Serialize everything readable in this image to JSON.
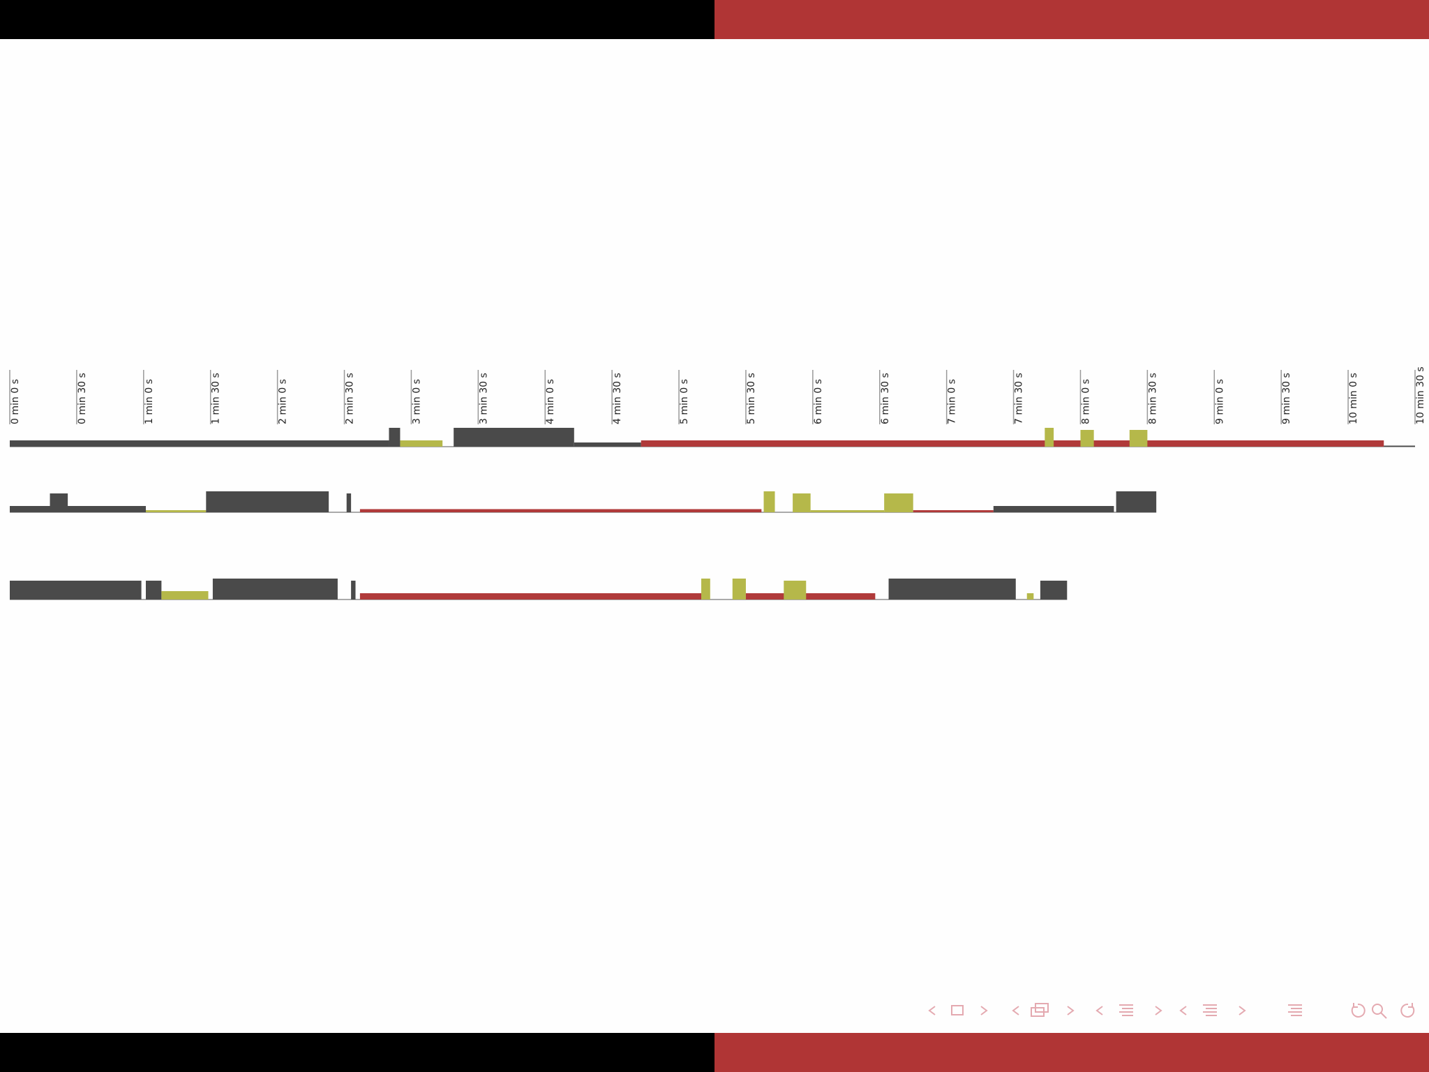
{
  "chart_data": {
    "type": "timeline",
    "xlim": [
      0,
      630
    ],
    "xticks": [
      {
        "value": 0,
        "label": "0 min 0 s"
      },
      {
        "value": 30,
        "label": "0 min 30 s"
      },
      {
        "value": 60,
        "label": "1 min 0 s"
      },
      {
        "value": 90,
        "label": "1 min 30 s"
      },
      {
        "value": 120,
        "label": "2 min 0 s"
      },
      {
        "value": 150,
        "label": "2 min 30 s"
      },
      {
        "value": 180,
        "label": "3 min 0 s"
      },
      {
        "value": 210,
        "label": "3 min 30 s"
      },
      {
        "value": 240,
        "label": "4 min 0 s"
      },
      {
        "value": 270,
        "label": "4 min 30 s"
      },
      {
        "value": 300,
        "label": "5 min 0 s"
      },
      {
        "value": 330,
        "label": "5 min 30 s"
      },
      {
        "value": 360,
        "label": "6 min 0 s"
      },
      {
        "value": 390,
        "label": "6 min 30 s"
      },
      {
        "value": 420,
        "label": "7 min 0 s"
      },
      {
        "value": 450,
        "label": "7 min 30 s"
      },
      {
        "value": 480,
        "label": "8 min 0 s"
      },
      {
        "value": 510,
        "label": "8 min 30 s"
      },
      {
        "value": 540,
        "label": "9 min 0 s"
      },
      {
        "value": 570,
        "label": "9 min 30 s"
      },
      {
        "value": 600,
        "label": "10 min 0 s"
      },
      {
        "value": 630,
        "label": "10 min 30 s"
      }
    ],
    "rows": [
      {
        "segments": [
          {
            "start": 0,
            "end": 170,
            "level": 0.3,
            "color": "#4a4a4a"
          },
          {
            "start": 170,
            "end": 175,
            "level": 0.9,
            "color": "#4a4a4a"
          },
          {
            "start": 175,
            "end": 194,
            "level": 0.3,
            "color": "#b5b84a"
          },
          {
            "start": 199,
            "end": 253,
            "level": 0.9,
            "color": "#4a4a4a"
          },
          {
            "start": 253,
            "end": 283,
            "level": 0.2,
            "color": "#4a4a4a"
          },
          {
            "start": 283,
            "end": 616,
            "level": 0.3,
            "color": "#b03a3a"
          },
          {
            "start": 464,
            "end": 468,
            "level": 0.9,
            "color": "#b5b84a"
          },
          {
            "start": 480,
            "end": 486,
            "level": 0.8,
            "color": "#b5b84a"
          },
          {
            "start": 502,
            "end": 510,
            "level": 0.8,
            "color": "#b5b84a"
          },
          {
            "start": 616,
            "end": 630,
            "level": 0.05,
            "color": "#4a4a4a"
          }
        ]
      },
      {
        "segments": [
          {
            "start": 0,
            "end": 61,
            "level": 0.3,
            "color": "#4a4a4a"
          },
          {
            "start": 18,
            "end": 26,
            "level": 0.9,
            "color": "#4a4a4a"
          },
          {
            "start": 61,
            "end": 88,
            "level": 0.1,
            "color": "#b5b84a"
          },
          {
            "start": 88,
            "end": 143,
            "level": 1.0,
            "color": "#4a4a4a"
          },
          {
            "start": 151,
            "end": 153,
            "level": 0.9,
            "color": "#4a4a4a"
          },
          {
            "start": 157,
            "end": 337,
            "level": 0.15,
            "color": "#b03a3a"
          },
          {
            "start": 338,
            "end": 343,
            "level": 1.0,
            "color": "#b5b84a"
          },
          {
            "start": 351,
            "end": 359,
            "level": 0.9,
            "color": "#b5b84a"
          },
          {
            "start": 359,
            "end": 392,
            "level": 0.1,
            "color": "#b5b84a"
          },
          {
            "start": 392,
            "end": 405,
            "level": 0.9,
            "color": "#b5b84a"
          },
          {
            "start": 405,
            "end": 441,
            "level": 0.1,
            "color": "#b03a3a"
          },
          {
            "start": 441,
            "end": 495,
            "level": 0.3,
            "color": "#4a4a4a"
          },
          {
            "start": 496,
            "end": 514,
            "level": 1.0,
            "color": "#4a4a4a"
          }
        ]
      },
      {
        "segments": [
          {
            "start": 0,
            "end": 59,
            "level": 0.9,
            "color": "#4a4a4a"
          },
          {
            "start": 61,
            "end": 68,
            "level": 0.9,
            "color": "#4a4a4a"
          },
          {
            "start": 68,
            "end": 89,
            "level": 0.4,
            "color": "#b5b84a"
          },
          {
            "start": 91,
            "end": 147,
            "level": 1.0,
            "color": "#4a4a4a"
          },
          {
            "start": 153,
            "end": 155,
            "level": 0.9,
            "color": "#4a4a4a"
          },
          {
            "start": 157,
            "end": 310,
            "level": 0.3,
            "color": "#b03a3a"
          },
          {
            "start": 310,
            "end": 314,
            "level": 1.0,
            "color": "#b5b84a"
          },
          {
            "start": 324,
            "end": 330,
            "level": 1.0,
            "color": "#b5b84a"
          },
          {
            "start": 330,
            "end": 388,
            "level": 0.3,
            "color": "#b03a3a"
          },
          {
            "start": 347,
            "end": 357,
            "level": 0.9,
            "color": "#b5b84a"
          },
          {
            "start": 394,
            "end": 451,
            "level": 1.0,
            "color": "#4a4a4a"
          },
          {
            "start": 456,
            "end": 459,
            "level": 0.3,
            "color": "#b5b84a"
          },
          {
            "start": 462,
            "end": 474,
            "level": 0.9,
            "color": "#4a4a4a"
          }
        ]
      }
    ]
  }
}
